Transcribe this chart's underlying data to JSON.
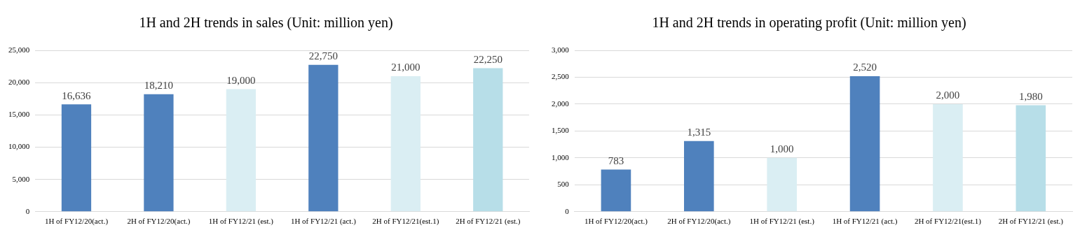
{
  "chart_data": [
    {
      "type": "bar",
      "title": "1H and 2H trends in sales (Unit: million yen)",
      "categories": [
        "1H of FY12/20(act.)",
        "2H of FY12/20(act.)",
        "1H of FY12/21 (est.)",
        "1H of FY12/21 (act.)",
        "2H of FY12/21(est.1)",
        "2H of FY12/21 (est.)"
      ],
      "values": [
        16636,
        18210,
        19000,
        22750,
        21000,
        22250
      ],
      "value_labels": [
        "16,636",
        "18,210",
        "19,000",
        "22,750",
        "21,000",
        "22,250"
      ],
      "colors": [
        "#4f81bd",
        "#4f81bd",
        "#daeef3",
        "#4f81bd",
        "#daeef3",
        "#b7dee8"
      ],
      "ylim": [
        0,
        25000
      ],
      "yticks": [
        {
          "value": 0,
          "label": "0"
        },
        {
          "value": 5000,
          "label": "5,000"
        },
        {
          "value": 10000,
          "label": "10,000"
        },
        {
          "value": 15000,
          "label": "15,000"
        },
        {
          "value": 20000,
          "label": "20,000"
        },
        {
          "value": 25000,
          "label": "25,000"
        }
      ],
      "grid": "y",
      "legend": false
    },
    {
      "type": "bar",
      "title": "1H and 2H trends in operating profit (Unit: million yen)",
      "categories": [
        "1H of FY12/20(act.)",
        "2H of FY12/20(act.)",
        "1H of FY12/21 (est.)",
        "1H of FY12/21 (act.)",
        "2H of FY12/21(est.1)",
        "2H of FY12/21 (est.)"
      ],
      "values": [
        783,
        1315,
        1000,
        2520,
        2000,
        1980
      ],
      "value_labels": [
        "783",
        "1,315",
        "1,000",
        "2,520",
        "2,000",
        "1,980"
      ],
      "colors": [
        "#4f81bd",
        "#4f81bd",
        "#daeef3",
        "#4f81bd",
        "#daeef3",
        "#b7dee8"
      ],
      "ylim": [
        0,
        3000
      ],
      "yticks": [
        {
          "value": 0,
          "label": "0"
        },
        {
          "value": 500,
          "label": "500"
        },
        {
          "value": 1000,
          "label": "1,000"
        },
        {
          "value": 1500,
          "label": "1,500"
        },
        {
          "value": 2000,
          "label": "2,000"
        },
        {
          "value": 2500,
          "label": "2,500"
        },
        {
          "value": 3000,
          "label": "3,000"
        }
      ],
      "grid": "y",
      "legend": false
    }
  ]
}
